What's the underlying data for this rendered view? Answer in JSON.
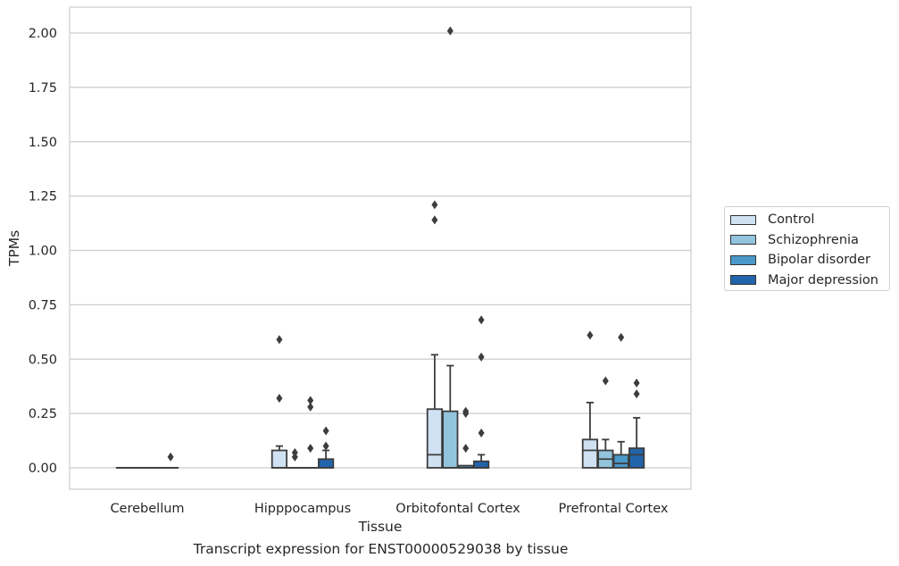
{
  "caption": "Transcript expression for ENST00000529038 by tissue",
  "chart_data": {
    "type": "box",
    "xlabel": "Tissue",
    "ylabel": "TPMs",
    "ylim": [
      -0.1,
      2.1
    ],
    "yticks": [
      "0.00",
      "0.25",
      "0.50",
      "0.75",
      "1.00",
      "1.25",
      "1.50",
      "1.75",
      "2.00"
    ],
    "grid": "horizontal",
    "legend_position": "right",
    "categories": [
      "Cerebellum",
      "Hipppocampus",
      "Orbitofontal Cortex",
      "Prefrontal Cortex"
    ],
    "series": [
      {
        "name": "Control",
        "color": "#cfe1f2",
        "boxes": [
          {
            "q1": 0,
            "median": 0,
            "q3": 0,
            "whisker_low": 0,
            "whisker_high": 0,
            "outliers": []
          },
          {
            "q1": 0,
            "median": 0,
            "q3": 0.08,
            "whisker_low": 0,
            "whisker_high": 0.1,
            "outliers": [
              0.59,
              0.32
            ]
          },
          {
            "q1": 0,
            "median": 0.06,
            "q3": 0.27,
            "whisker_low": 0,
            "whisker_high": 0.52,
            "outliers": [
              1.21,
              1.14
            ]
          },
          {
            "q1": 0,
            "median": 0.08,
            "q3": 0.13,
            "whisker_low": 0,
            "whisker_high": 0.3,
            "outliers": [
              0.61
            ]
          }
        ]
      },
      {
        "name": "Schizophrenia",
        "color": "#93c4de",
        "boxes": [
          {
            "q1": 0,
            "median": 0,
            "q3": 0,
            "whisker_low": 0,
            "whisker_high": 0,
            "outliers": []
          },
          {
            "q1": 0,
            "median": 0,
            "q3": 0,
            "whisker_low": 0,
            "whisker_high": 0,
            "outliers": [
              0.07,
              0.05
            ]
          },
          {
            "q1": 0,
            "median": 0,
            "q3": 0.26,
            "whisker_low": 0,
            "whisker_high": 0.47,
            "outliers": [
              2.01
            ]
          },
          {
            "q1": 0,
            "median": 0.04,
            "q3": 0.08,
            "whisker_low": 0,
            "whisker_high": 0.13,
            "outliers": [
              0.4
            ]
          }
        ]
      },
      {
        "name": "Bipolar disorder",
        "color": "#4a98c9",
        "boxes": [
          {
            "q1": 0,
            "median": 0,
            "q3": 0,
            "whisker_low": 0,
            "whisker_high": 0,
            "outliers": []
          },
          {
            "q1": 0,
            "median": 0,
            "q3": 0,
            "whisker_low": 0,
            "whisker_high": 0,
            "outliers": [
              0.31,
              0.28,
              0.09
            ]
          },
          {
            "q1": 0,
            "median": 0,
            "q3": 0.01,
            "whisker_low": 0,
            "whisker_high": 0.01,
            "outliers": [
              0.26,
              0.25,
              0.09
            ]
          },
          {
            "q1": 0,
            "median": 0.02,
            "q3": 0.06,
            "whisker_low": 0,
            "whisker_high": 0.12,
            "outliers": [
              0.6
            ]
          }
        ]
      },
      {
        "name": "Major depression",
        "color": "#2164ab",
        "boxes": [
          {
            "q1": 0,
            "median": 0,
            "q3": 0,
            "whisker_low": 0,
            "whisker_high": 0,
            "outliers": [
              0.05
            ]
          },
          {
            "q1": 0,
            "median": 0,
            "q3": 0.04,
            "whisker_low": 0,
            "whisker_high": 0.08,
            "outliers": [
              0.17,
              0.1
            ]
          },
          {
            "q1": 0,
            "median": 0,
            "q3": 0.03,
            "whisker_low": 0,
            "whisker_high": 0.06,
            "outliers": [
              0.68,
              0.51,
              0.16
            ]
          },
          {
            "q1": 0,
            "median": 0.06,
            "q3": 0.09,
            "whisker_low": 0,
            "whisker_high": 0.23,
            "outliers": [
              0.39,
              0.34
            ]
          }
        ]
      }
    ]
  }
}
